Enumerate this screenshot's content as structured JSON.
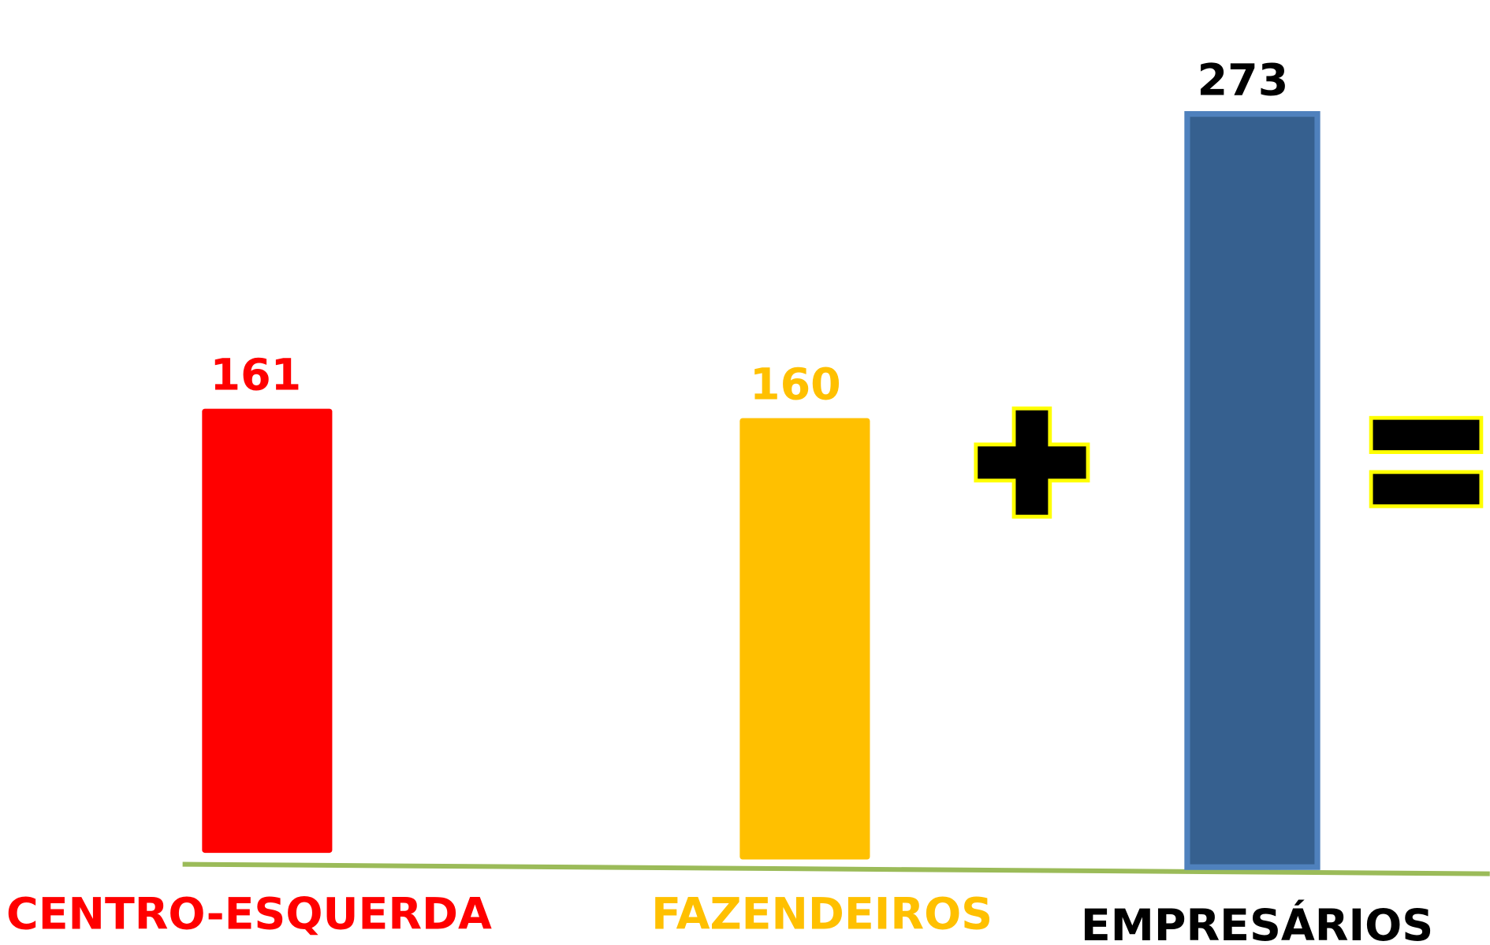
{
  "chart_data": {
    "type": "bar",
    "categories": [
      "CENTRO-ESQUERDA",
      "FAZENDEIROS",
      "EMPRESÁRIOS"
    ],
    "values": [
      161,
      160,
      273
    ],
    "colors": [
      "#ff0000",
      "#ffc000",
      "#36608f"
    ],
    "label_colors": [
      "#ff0000",
      "#ffc000",
      "#000000"
    ]
  }
}
